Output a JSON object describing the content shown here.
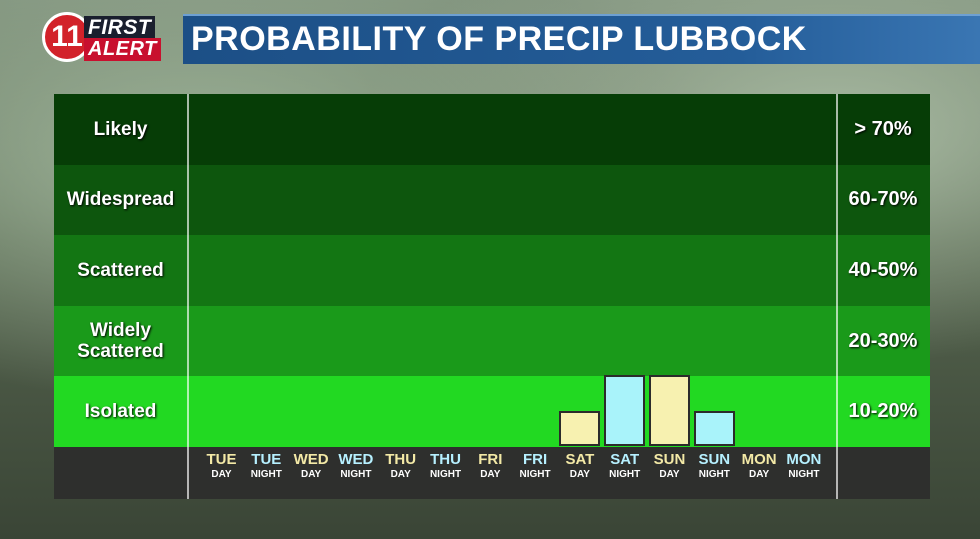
{
  "logo": {
    "number": "11",
    "line1": "FIRST",
    "line2": "ALERT"
  },
  "title": "PROBABILITY OF PRECIP LUBBOCK",
  "colors": {
    "band_likely": "#063d06",
    "band_widespread": "#0d560d",
    "band_scattered": "#137613",
    "band_widely_scattered": "#1a9a1a",
    "band_isolated": "#22d922",
    "day_text": "#f3e9a6",
    "night_text": "#b6f0ff",
    "day_bar": "#f7f1b0",
    "night_bar": "#a9f3fa"
  },
  "chart_data": {
    "type": "bar",
    "title": "PROBABILITY OF PRECIP LUBBOCK",
    "bands": [
      {
        "label": "Likely",
        "range": "> 70%"
      },
      {
        "label": "Widespread",
        "range": "60-70%"
      },
      {
        "label": "Scattered",
        "range": "40-50%"
      },
      {
        "label": "Widely Scattered",
        "range": "20-30%"
      },
      {
        "label": "Isolated",
        "range": "10-20%"
      }
    ],
    "categories": [
      {
        "day": "TUE",
        "period": "DAY"
      },
      {
        "day": "TUE",
        "period": "NIGHT"
      },
      {
        "day": "WED",
        "period": "DAY"
      },
      {
        "day": "WED",
        "period": "NIGHT"
      },
      {
        "day": "THU",
        "period": "DAY"
      },
      {
        "day": "THU",
        "period": "NIGHT"
      },
      {
        "day": "FRI",
        "period": "DAY"
      },
      {
        "day": "FRI",
        "period": "NIGHT"
      },
      {
        "day": "SAT",
        "period": "DAY"
      },
      {
        "day": "SAT",
        "period": "NIGHT"
      },
      {
        "day": "SUN",
        "period": "DAY"
      },
      {
        "day": "SUN",
        "period": "NIGHT"
      },
      {
        "day": "MON",
        "period": "DAY"
      },
      {
        "day": "MON",
        "period": "NIGHT"
      }
    ],
    "values": [
      0,
      0,
      0,
      0,
      0,
      0,
      0,
      0,
      10,
      20,
      20,
      10,
      0,
      0
    ],
    "value_unit": "percent"
  }
}
